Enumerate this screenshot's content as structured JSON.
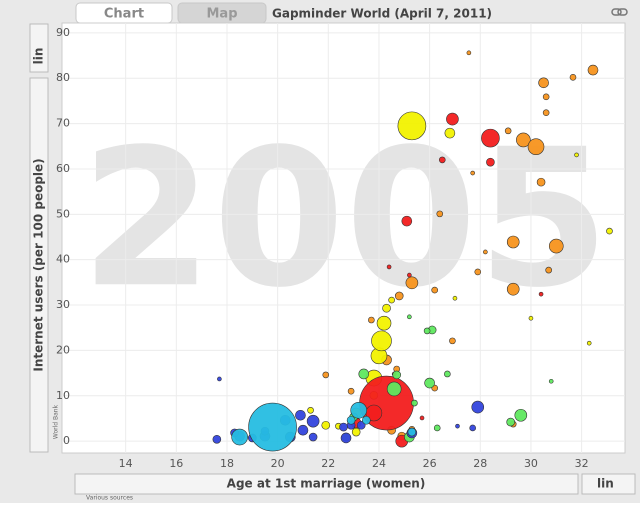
{
  "ui": {
    "tabs": [
      "Chart",
      "Map"
    ],
    "title": "Gapminder World (April 7, 2011)",
    "y_scale": "lin",
    "x_scale": "lin",
    "y_source": "World Bank",
    "x_source": "Various sources"
  },
  "chart_data": {
    "type": "bubble",
    "year_label": "2005",
    "x_label": "Age at 1st marriage (women)",
    "y_label": "Internet users (per 100 people)",
    "xlim": [
      12,
      33.2
    ],
    "ylim": [
      -2.4,
      92.4
    ],
    "xticks": [
      14,
      16,
      18,
      20,
      22,
      24,
      26,
      28,
      30,
      32
    ],
    "yticks": [
      0,
      10,
      20,
      30,
      40,
      50,
      60,
      70,
      80,
      90
    ],
    "grid": true,
    "series": [
      {
        "color": "#f7941d",
        "x": [
          27.55,
          32.45,
          31.66,
          30.5,
          30.6,
          29.1,
          29.7,
          30.2,
          30.6,
          30.4,
          27.7,
          26.4,
          29.3,
          31,
          30.7,
          29.3,
          25.3,
          26.2,
          27.9,
          28.2,
          24.8,
          26.9,
          23.7,
          21.9,
          22.9,
          26.2,
          24.3,
          24.7,
          24.5,
          24.9,
          29.3,
          25.3
        ],
        "values": [
          85.6,
          81.8,
          80.2,
          79,
          75.9,
          68.4,
          66.4,
          64.9,
          72.4,
          57.1,
          59.1,
          50.1,
          43.9,
          43,
          37.7,
          33.5,
          34.9,
          33.3,
          37.3,
          41.7,
          32,
          22.1,
          26.7,
          14.6,
          11,
          11.7,
          17.9,
          15.9,
          2.4,
          1.1,
          3.75,
          2.6
        ],
        "sizes": [
          2,
          5,
          3,
          5,
          3,
          3,
          7,
          8,
          3,
          4,
          2,
          3,
          6,
          7,
          3,
          6,
          6,
          3,
          3,
          2,
          4,
          3,
          3,
          3,
          3,
          3,
          5,
          3,
          4,
          4,
          3,
          3
        ]
      },
      {
        "color": "#f2f200",
        "x": [
          25.3,
          26.8,
          24,
          24.2,
          24.1,
          23.8,
          23.1,
          21.9,
          24.5,
          24.3,
          31.8,
          32.3,
          30,
          33.1,
          27,
          21.3,
          22.4,
          23.1,
          23.8
        ],
        "values": [
          69.5,
          67.9,
          18.8,
          26,
          22.1,
          13.9,
          6.2,
          3.5,
          31.1,
          29.3,
          63.1,
          21.6,
          27.1,
          46.3,
          31.5,
          6.8,
          3.3,
          2,
          10.1
        ],
        "sizes": [
          14,
          5,
          8,
          7,
          10,
          8,
          5,
          4,
          3,
          4,
          2,
          2,
          2,
          3,
          2,
          3,
          3,
          4,
          4
        ]
      },
      {
        "color": "#f21d1d",
        "x": [
          26.9,
          28.4,
          28.4,
          26.5,
          25.1,
          25.2,
          24.4,
          30.4,
          24.3,
          23.8,
          24.9,
          23.1,
          25.7,
          24.6
        ],
        "values": [
          71,
          66.8,
          61.5,
          62,
          48.5,
          36.6,
          38.4,
          32.4,
          8.4,
          6.2,
          0,
          4,
          5.1,
          14.8
        ],
        "sizes": [
          6,
          9,
          4,
          3,
          5,
          2,
          2,
          2,
          27,
          8,
          6,
          5,
          2,
          2
        ]
      },
      {
        "color": "#5fe85f",
        "x": [
          26.1,
          25.9,
          26,
          26.7,
          25.2,
          24.6,
          23.4,
          29.6,
          29.2,
          25.2,
          26.3,
          22.7,
          23,
          30.8,
          25.4,
          24.7
        ],
        "values": [
          24.5,
          24.3,
          12.8,
          14.8,
          27.4,
          11.5,
          14.8,
          5.7,
          4.2,
          0.9,
          2.9,
          0.9,
          5.3,
          13.2,
          8.4,
          14.6
        ],
        "sizes": [
          4,
          3,
          5,
          3,
          2,
          7,
          5,
          6,
          4,
          5,
          3,
          4,
          4,
          2,
          3,
          4
        ]
      },
      {
        "color": "#3344dd",
        "x": [
          17.7,
          27.9,
          27.7,
          27.1,
          25.3,
          17.6,
          18.5,
          19,
          19.5,
          20.5,
          21,
          21.4,
          20.3,
          20.9,
          21.4,
          22.7,
          22.9,
          18.3,
          19.5,
          22.6,
          23.3
        ],
        "values": [
          13.7,
          7.5,
          2.9,
          3.3,
          1.8,
          0.4,
          1.1,
          0.7,
          1.1,
          0.9,
          2.4,
          0.9,
          4.6,
          5.7,
          4.4,
          0.7,
          3.5,
          1.8,
          2.2,
          3.1,
          3.5
        ],
        "sizes": [
          2,
          6,
          3,
          2,
          5,
          4,
          5,
          4,
          5,
          5,
          5,
          4,
          5,
          5,
          6,
          5,
          4,
          4,
          4,
          4,
          4
        ]
      },
      {
        "color": "#26bde2",
        "x": [
          19.8,
          18.5,
          23.2,
          23.5,
          22.9,
          25.3
        ],
        "values": [
          3.1,
          0.9,
          6.8,
          4.6,
          4.6,
          2.0
        ],
        "sizes": [
          24,
          8,
          8,
          4,
          4,
          4
        ]
      }
    ]
  }
}
